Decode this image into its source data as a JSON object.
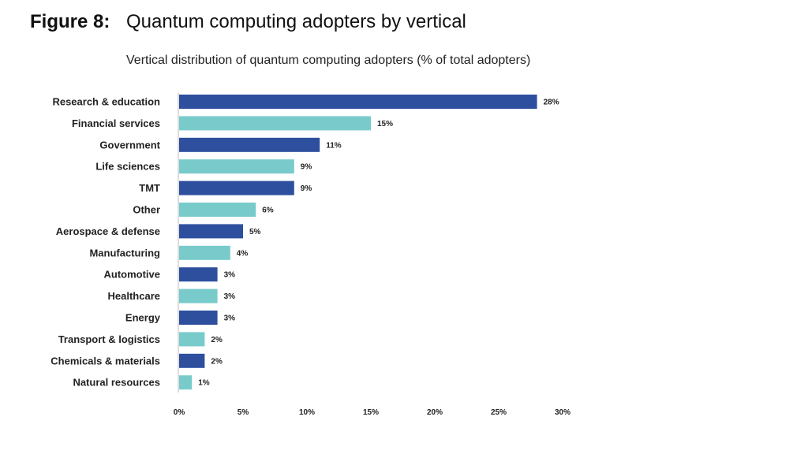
{
  "header": {
    "figure_label": "Figure 8:",
    "title": "Quantum computing adopters by vertical"
  },
  "chart_data": {
    "type": "bar",
    "orientation": "horizontal",
    "title": "Vertical distribution of quantum computing adopters (% of total adopters)",
    "categories": [
      "Research & education",
      "Financial services",
      "Government",
      "Life sciences",
      "TMT",
      "Other",
      "Aerospace & defense",
      "Manufacturing",
      "Automotive",
      "Healthcare",
      "Energy",
      "Transport & logistics",
      "Chemicals & materials",
      "Natural resources"
    ],
    "values": [
      28,
      15,
      11,
      9,
      9,
      6,
      5,
      4,
      3,
      3,
      3,
      2,
      2,
      1
    ],
    "value_labels": [
      "28%",
      "15%",
      "11%",
      "9%",
      "9%",
      "6%",
      "5%",
      "4%",
      "3%",
      "3%",
      "3%",
      "2%",
      "2%",
      "1%"
    ],
    "xlim": [
      0,
      30
    ],
    "ticks": [
      0,
      5,
      10,
      15,
      20,
      25,
      30
    ],
    "tick_labels": [
      "0%",
      "5%",
      "10%",
      "15%",
      "20%",
      "25%",
      "30%"
    ],
    "colors": [
      "#2e4f9e",
      "#79cbcb"
    ],
    "grid": false
  }
}
